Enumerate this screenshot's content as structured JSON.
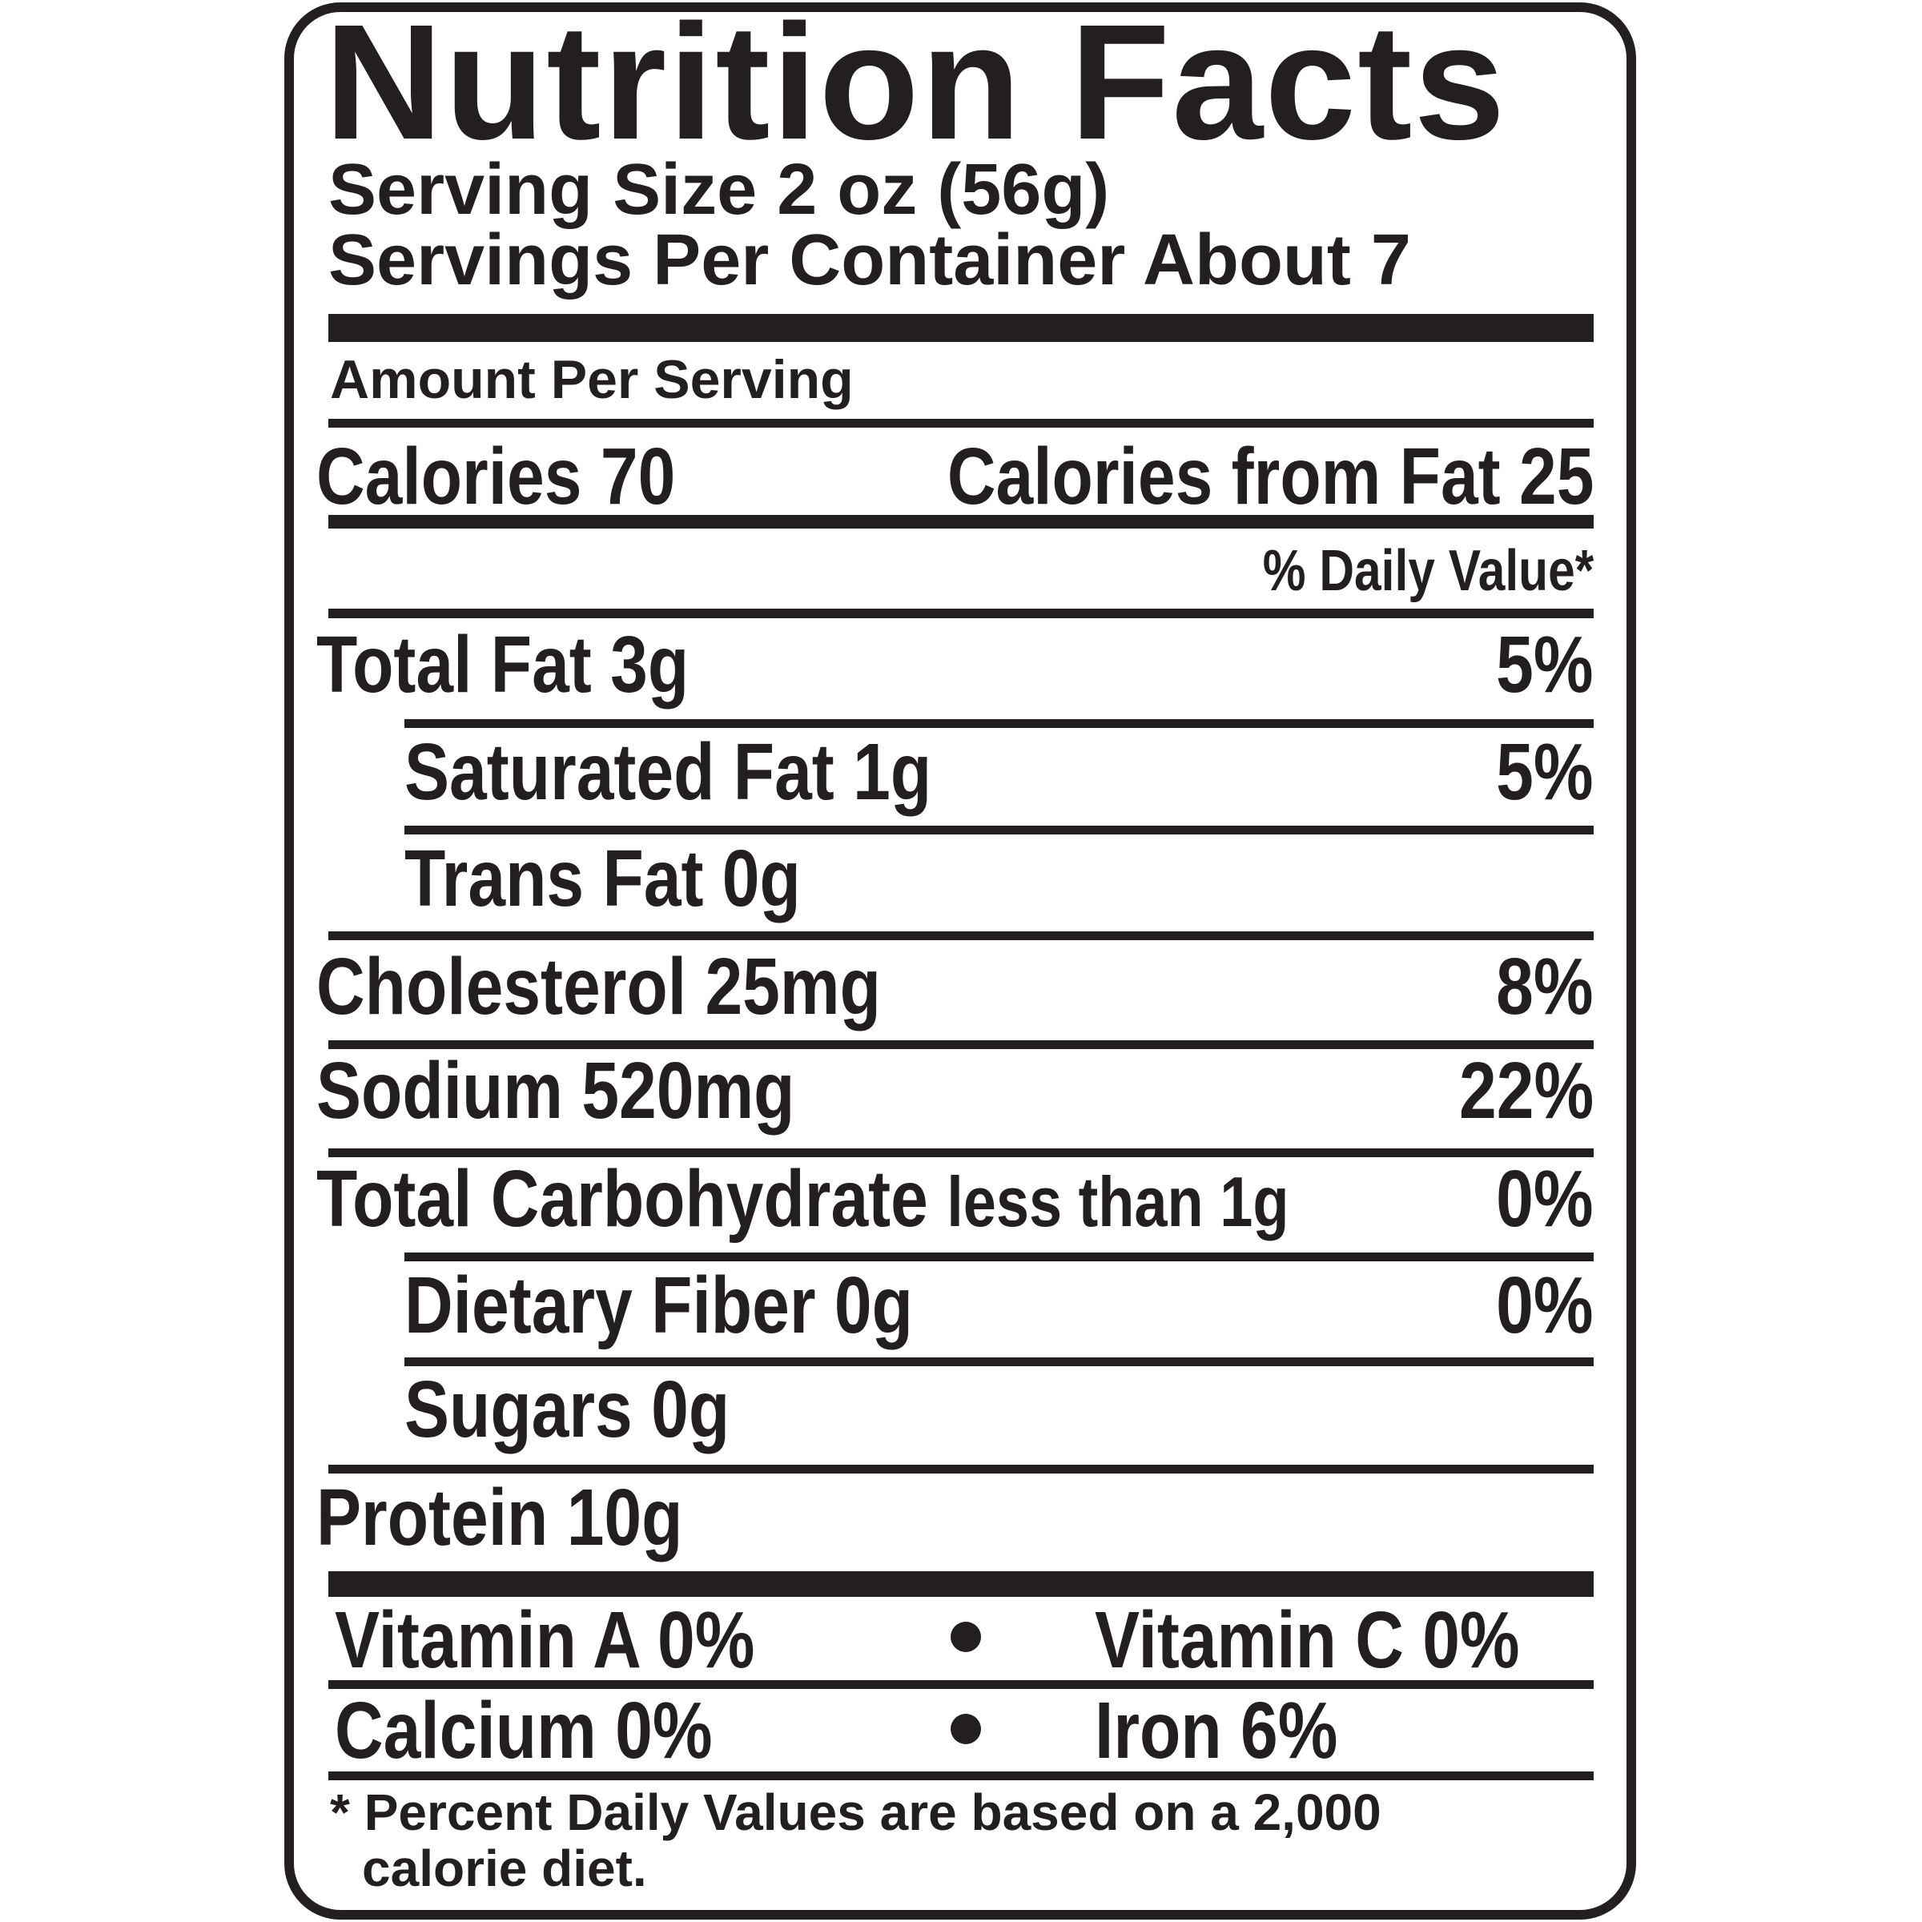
{
  "title": "Nutrition Facts",
  "serving_size": "Serving Size 2 oz (56g)",
  "servings_per_container": "Servings Per Container About 7",
  "amount_per_serving": "Amount Per Serving",
  "calories": {
    "label": "Calories",
    "value": "70",
    "from_fat": "Calories from Fat 25"
  },
  "daily_value_header": "% Daily Value*",
  "nutrients": [
    {
      "label": "Total Fat",
      "amount": "3g",
      "dv": "5%"
    },
    {
      "label": "Saturated Fat 1g",
      "amount": "",
      "dv": "5%"
    },
    {
      "label": "Trans Fat 0g",
      "amount": "",
      "dv": ""
    },
    {
      "label": "Cholesterol",
      "amount": "25mg",
      "dv": "8%"
    },
    {
      "label": "Sodium",
      "amount": "520mg",
      "dv": "22%"
    },
    {
      "label": "Total Carbohydrate",
      "amount": "less than 1g",
      "dv": "0%"
    },
    {
      "label": "Dietary Fiber 0g",
      "amount": "",
      "dv": "0%"
    },
    {
      "label": "Sugars 0g",
      "amount": "",
      "dv": ""
    },
    {
      "label": "Protein",
      "amount": "10g",
      "dv": ""
    }
  ],
  "vitamins": [
    {
      "left": "Vitamin A 0%",
      "right": "Vitamin C 0%"
    },
    {
      "left": "Calcium 0%",
      "right": "Iron 6%"
    }
  ],
  "footnote": [
    "* Percent Daily Values are based on a 2,000",
    "calorie diet."
  ]
}
